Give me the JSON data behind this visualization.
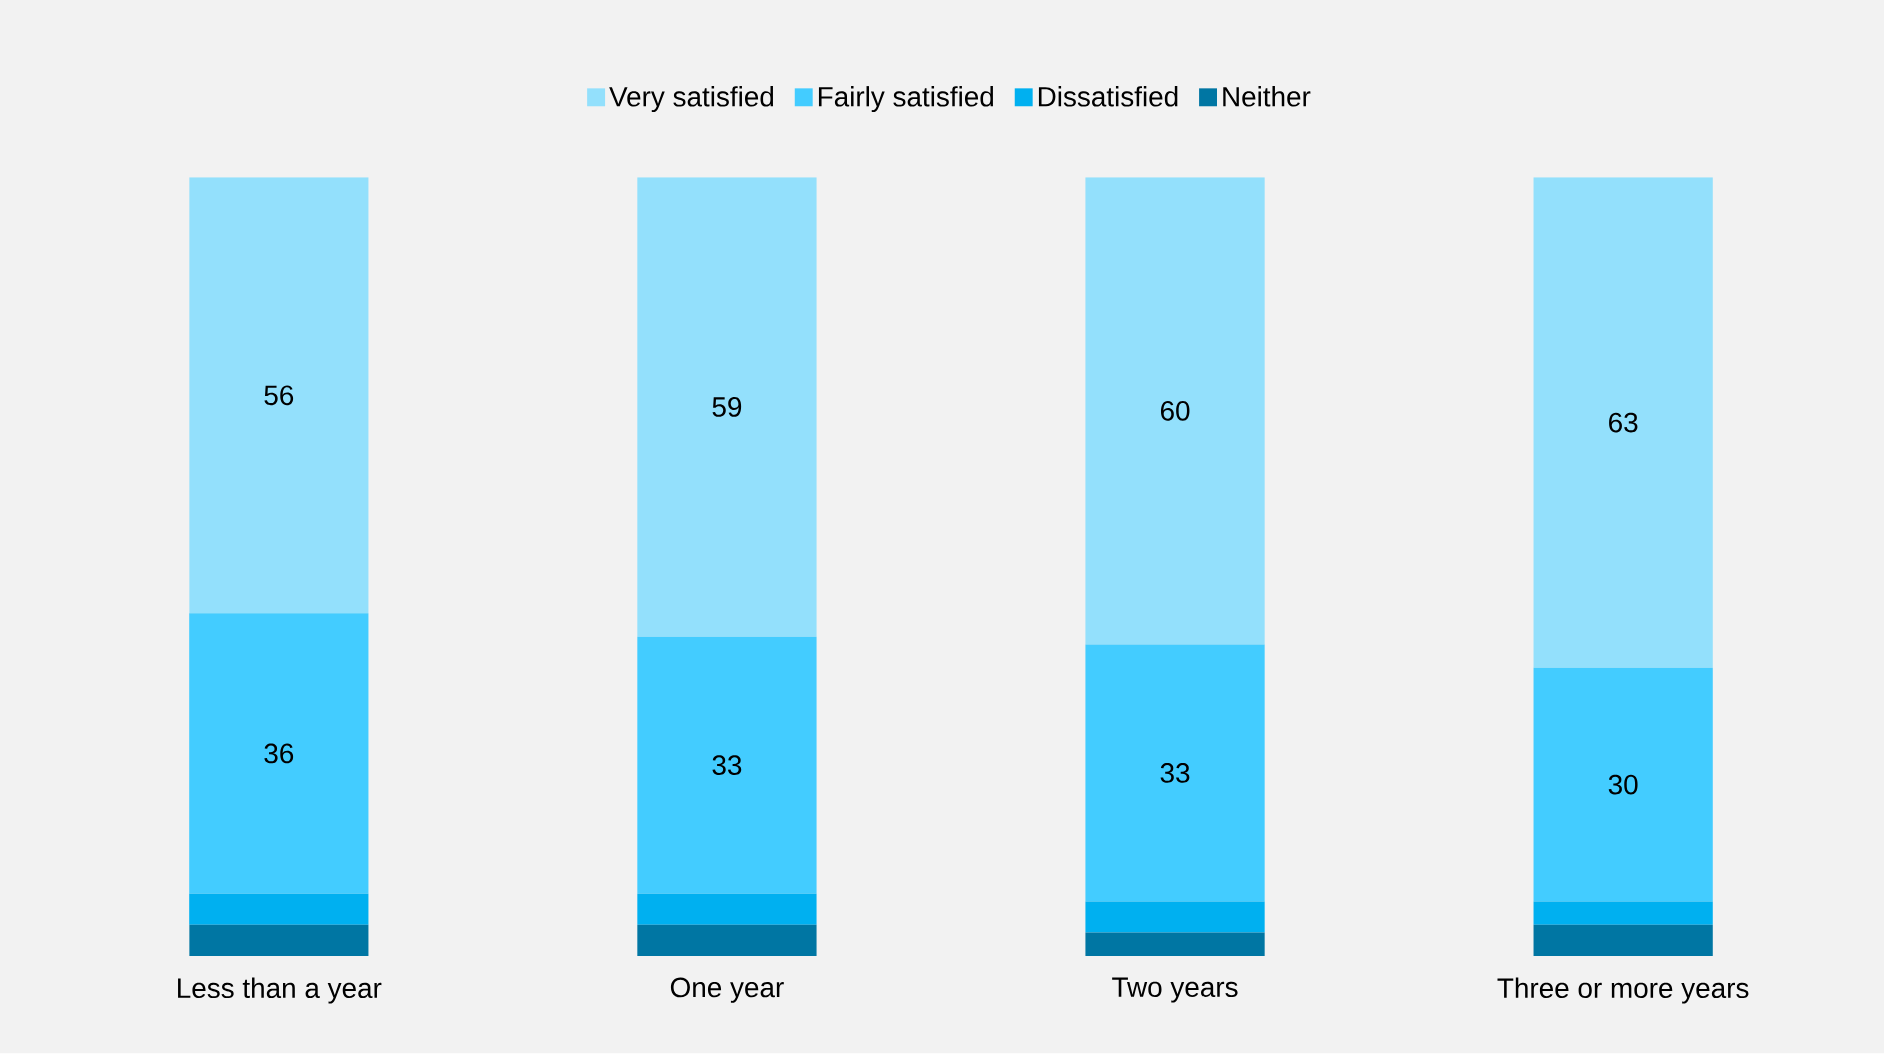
{
  "chart_data": {
    "type": "bar",
    "stacked": true,
    "legend": "top",
    "categories": [
      "Less than a year",
      "One year",
      "Two years",
      "Three or more years"
    ],
    "series": [
      {
        "name": "Neither",
        "color": "#0076a3",
        "values": [
          4,
          4,
          3,
          4
        ],
        "value_labels": [
          null,
          null,
          null,
          null
        ]
      },
      {
        "name": "Dissatisfied",
        "color": "#00b0f0",
        "values": [
          4,
          4,
          4,
          3
        ],
        "value_labels": [
          null,
          null,
          null,
          null
        ]
      },
      {
        "name": "Fairly satisfied",
        "color": "#43ccff",
        "values": [
          36,
          33,
          33,
          30
        ],
        "value_labels": [
          "36",
          "33",
          "33",
          "30"
        ]
      },
      {
        "name": "Very satisfied",
        "color": "#93e0fc",
        "values": [
          56,
          59,
          60,
          63
        ],
        "value_labels": [
          "56",
          "59",
          "60",
          "63"
        ]
      }
    ]
  }
}
